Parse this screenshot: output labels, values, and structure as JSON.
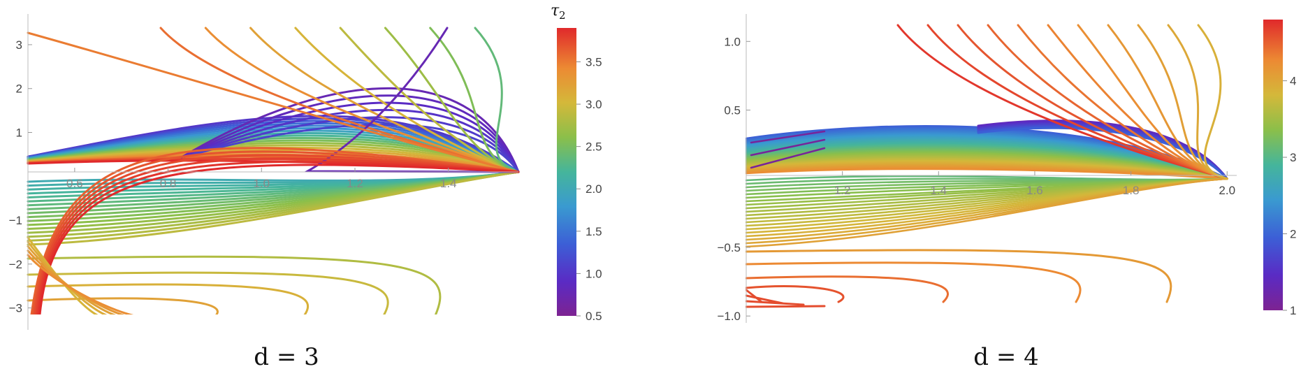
{
  "chart_data": [
    {
      "type": "line",
      "caption": "d = 3",
      "x_ticks": [
        "0.6",
        "0.8",
        "1.0",
        "1.2",
        "1.4"
      ],
      "y_ticks": [
        "−3",
        "−2",
        "−1",
        "1",
        "2",
        "3"
      ],
      "xlim": [
        0.5,
        1.55
      ],
      "ylim": [
        -3.5,
        3.7
      ],
      "colorbar": {
        "title": "τ",
        "title_sub": "2",
        "ticks": [
          "0.5",
          "1.0",
          "1.5",
          "2.0",
          "2.5",
          "3.0",
          "3.5"
        ],
        "range": [
          0.5,
          3.9
        ]
      },
      "families": [
        {
          "name": "upper fan",
          "count": 20
        },
        {
          "name": "lower fan",
          "count": 17
        },
        {
          "name": "steep curves",
          "count": 8
        },
        {
          "name": "arcs from bottom-left",
          "count": 6
        }
      ]
    },
    {
      "type": "line",
      "caption": "d = 4",
      "x_ticks": [
        "1.2",
        "1.4",
        "1.6",
        "1.8",
        "2.0"
      ],
      "y_ticks": [
        "1.0",
        "0.5",
        "−0.5",
        "−1.0"
      ],
      "xlim": [
        1.0,
        2.02
      ],
      "ylim": [
        -1.05,
        1.2
      ],
      "colorbar": {
        "ticks": [
          "1",
          "2",
          "3",
          "4"
        ],
        "range": [
          1.0,
          4.8
        ]
      },
      "families": [
        {
          "name": "upper fan",
          "count": 38
        },
        {
          "name": "lower fan",
          "count": 20
        },
        {
          "name": "steep curves",
          "count": 11
        }
      ]
    }
  ]
}
